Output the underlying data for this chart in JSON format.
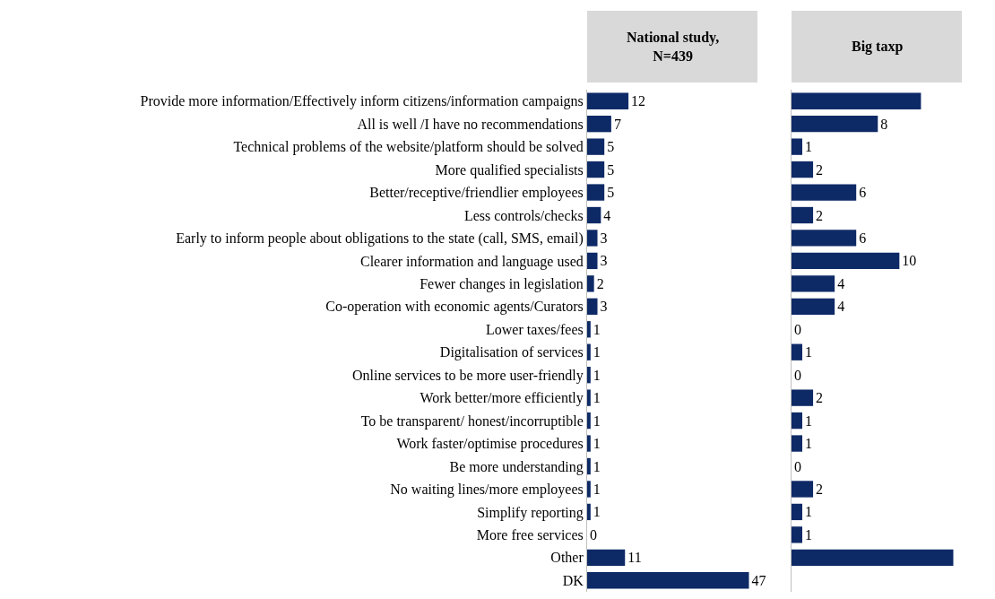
{
  "chart_data": [
    {
      "type": "bar",
      "orientation": "horizontal",
      "title": "National study,\nN=439",
      "color": "#0e2a66",
      "tick_labels": "y",
      "data_labels": true,
      "categories": [
        "Provide more information/Effectively inform citizens/information campaigns",
        "All is well /I have no recommendations",
        "Technical problems of the website/platform should be solved",
        "More qualified specialists",
        "Better/receptive/friendlier employees",
        "Less controls/checks",
        "Early to inform people about obligations to the state (call, SMS, email)",
        "Clearer information and language used",
        "Fewer changes in legislation",
        "Co-operation with economic agents/Curators",
        "Lower taxes/fees",
        "Digitalisation of services",
        "Online services to be more user-friendly",
        "Work better/more efficiently",
        "To be transparent/ honest/incorruptible",
        "Work faster/optimise procedures",
        "Be more understanding",
        "No waiting lines/more employees",
        "Simplify reporting",
        "More free services",
        "Other",
        "DK"
      ],
      "values": [
        12,
        7,
        5,
        5,
        5,
        4,
        3,
        3,
        2,
        3,
        1,
        1,
        1,
        1,
        1,
        1,
        1,
        1,
        1,
        0,
        11,
        47
      ]
    },
    {
      "type": "bar",
      "orientation": "horizontal",
      "title": "Big taxp",
      "color": "#0e2a66",
      "tick_labels": false,
      "categories": [
        null,
        null,
        null,
        null,
        null,
        null,
        null,
        null,
        null,
        null,
        null,
        null,
        null,
        null,
        null,
        null,
        null,
        null,
        null,
        null,
        null,
        null
      ],
      "values": [
        12,
        8,
        1,
        2,
        6,
        2,
        6,
        10,
        4,
        4,
        0,
        1,
        0,
        2,
        1,
        1,
        0,
        2,
        1,
        1,
        15,
        null
      ],
      "value_labels": [
        null,
        "8",
        "1",
        "2",
        "6",
        "2",
        "6",
        "10",
        "4",
        "4",
        "0",
        "1",
        "0",
        "2",
        "1",
        "1",
        "0",
        "2",
        "1",
        "1",
        null,
        null
      ]
    }
  ]
}
